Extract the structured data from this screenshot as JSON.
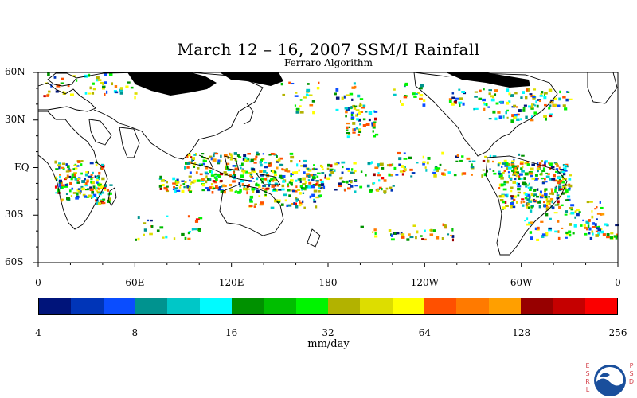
{
  "header": {
    "title": "March 12 – 16, 2007 SSM/I Rainfall",
    "subtitle": "Ferraro Algorithm"
  },
  "map": {
    "lat_labels": [
      "60N",
      "30N",
      "EQ",
      "30S",
      "60S"
    ],
    "lat_values": [
      60,
      30,
      0,
      -30,
      -60
    ],
    "lon_labels": [
      "0",
      "60E",
      "120E",
      "180",
      "120W",
      "60W",
      "0"
    ],
    "lon_values": [
      0,
      60,
      120,
      180,
      240,
      300,
      360
    ],
    "extent": {
      "lon_min": 0,
      "lon_max": 360,
      "lat_min": -60,
      "lat_max": 60
    },
    "no_data_color": "#000000",
    "background_color": "#ffffff"
  },
  "colorbar": {
    "colors": [
      "#00147a",
      "#0035b8",
      "#0a4dff",
      "#00938f",
      "#00c7c7",
      "#00fbff",
      "#009100",
      "#00be00",
      "#00f400",
      "#b2b200",
      "#dddd00",
      "#ffff00",
      "#ff5000",
      "#ff7a00",
      "#ff9f00",
      "#970000",
      "#c50000",
      "#fb0000"
    ],
    "tick_labels": [
      "4",
      "8",
      "16",
      "32",
      "64",
      "128",
      "256"
    ],
    "units": "mm/day"
  },
  "logo": {
    "left_text": "ESRL",
    "right_text": "PSD",
    "emblem": "NOAA"
  }
}
